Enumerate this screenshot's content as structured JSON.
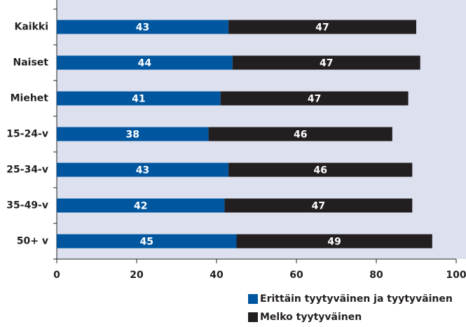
{
  "chart_data": {
    "type": "stacked-barh",
    "categories": [
      "Kaikki",
      "Naiset",
      "Miehet",
      "15-24-v",
      "25-34-v",
      "35-49-v",
      "50+ v"
    ],
    "series": [
      {
        "name": "Erittäin tyytyväinen ja tyytyväinen",
        "color": "#0057a0",
        "values": [
          43,
          44,
          41,
          38,
          43,
          42,
          45
        ]
      },
      {
        "name": "Melko tyytyväinen",
        "color": "#231f20",
        "values": [
          47,
          47,
          47,
          46,
          46,
          47,
          49
        ]
      }
    ],
    "xlim": [
      0,
      100
    ],
    "xticks": [
      0,
      20,
      40,
      60,
      80,
      100
    ]
  }
}
